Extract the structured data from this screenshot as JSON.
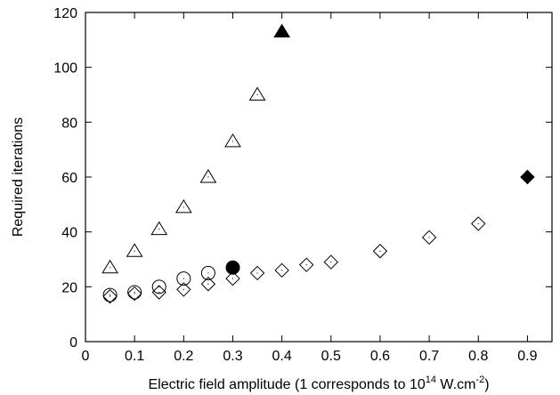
{
  "chart_data": {
    "type": "scatter",
    "title": "",
    "xlabel": {
      "prefix": "Electric field amplitude (1 corresponds to 10",
      "exp1": "14",
      "middle": " W.cm",
      "exp2": "-2",
      "suffix": ")"
    },
    "ylabel": "Required iterations",
    "xlim": [
      0,
      0.95
    ],
    "ylim": [
      0,
      120
    ],
    "xticks": [
      0,
      0.1,
      0.2,
      0.3,
      0.4,
      0.5,
      0.6,
      0.7,
      0.8,
      0.9
    ],
    "xtick_labels": [
      "0",
      "0.1",
      "0.2",
      "0.3",
      "0.4",
      "0.5",
      "0.6",
      "0.7",
      "0.8",
      "0.9"
    ],
    "yticks": [
      0,
      20,
      40,
      60,
      80,
      100,
      120
    ],
    "ytick_labels": [
      "0",
      "20",
      "40",
      "60",
      "80",
      "100",
      "120"
    ],
    "grid": false,
    "legend": "none",
    "series": [
      {
        "marker": "triangle-open",
        "points": [
          [
            0.05,
            27
          ],
          [
            0.1,
            33
          ],
          [
            0.15,
            41
          ],
          [
            0.2,
            49
          ],
          [
            0.25,
            60
          ],
          [
            0.3,
            73
          ],
          [
            0.35,
            90
          ]
        ]
      },
      {
        "marker": "triangle-filled",
        "points": [
          [
            0.4,
            113
          ]
        ]
      },
      {
        "marker": "circle-open",
        "points": [
          [
            0.05,
            17
          ],
          [
            0.1,
            18
          ],
          [
            0.15,
            20
          ],
          [
            0.2,
            23
          ],
          [
            0.25,
            25
          ]
        ]
      },
      {
        "marker": "circle-filled",
        "points": [
          [
            0.3,
            27
          ]
        ]
      },
      {
        "marker": "diamond-open",
        "points": [
          [
            0.05,
            16.5
          ],
          [
            0.1,
            17.5
          ],
          [
            0.15,
            18
          ],
          [
            0.2,
            19
          ],
          [
            0.25,
            21
          ],
          [
            0.3,
            23
          ],
          [
            0.35,
            25
          ],
          [
            0.4,
            26
          ],
          [
            0.45,
            28
          ],
          [
            0.5,
            29
          ],
          [
            0.6,
            33
          ],
          [
            0.7,
            38
          ],
          [
            0.8,
            43
          ]
        ]
      },
      {
        "marker": "diamond-filled",
        "points": [
          [
            0.9,
            60
          ]
        ]
      }
    ],
    "colors": {
      "axis": "#000000",
      "marker": "#000000"
    }
  }
}
